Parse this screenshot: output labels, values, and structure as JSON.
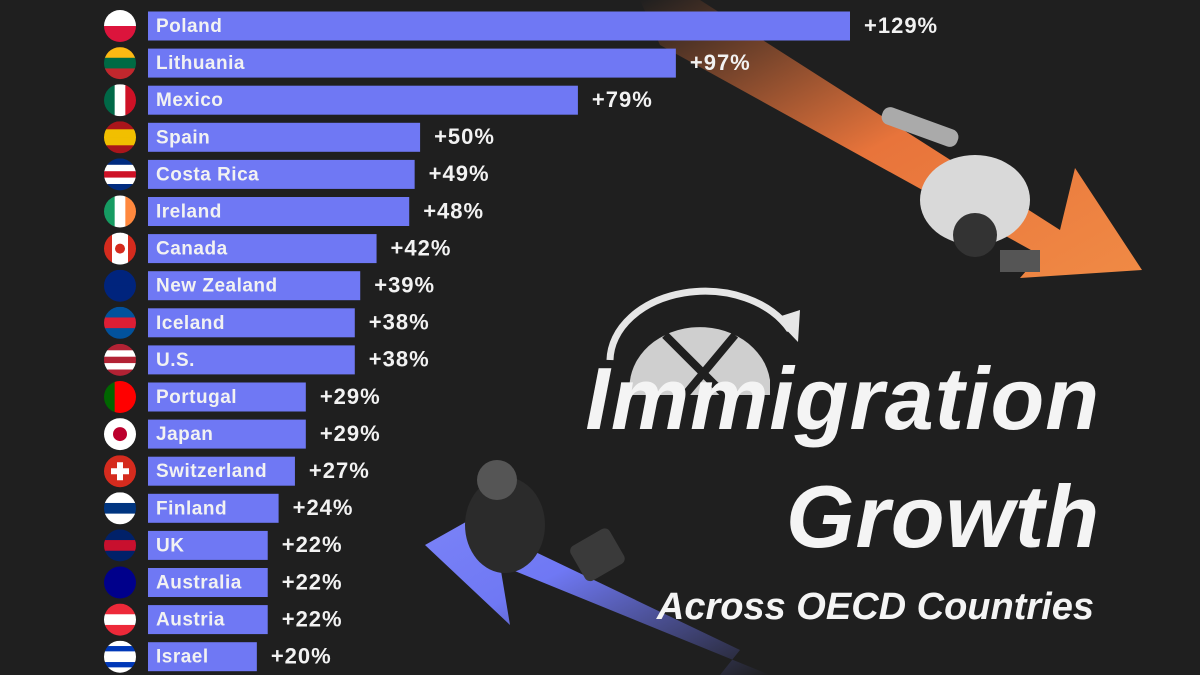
{
  "chart_data": {
    "type": "bar",
    "orientation": "horizontal",
    "title": "Immigration Growth",
    "subtitle": "Across OECD Countries",
    "categories": [
      "Poland",
      "Lithuania",
      "Mexico",
      "Spain",
      "Costa Rica",
      "Ireland",
      "Canada",
      "New Zealand",
      "Iceland",
      "U.S.",
      "Portugal",
      "Japan",
      "Switzerland",
      "Finland",
      "UK",
      "Australia",
      "Austria",
      "Israel"
    ],
    "values": [
      129,
      97,
      79,
      50,
      49,
      48,
      42,
      39,
      38,
      38,
      29,
      29,
      27,
      24,
      22,
      22,
      22,
      20
    ],
    "value_labels": [
      "+129%",
      "+97%",
      "+79%",
      "+50%",
      "+49%",
      "+48%",
      "+42%",
      "+39%",
      "+38%",
      "+38%",
      "+29%",
      "+29%",
      "+27%",
      "+24%",
      "+22%",
      "+22%",
      "+22%",
      "+20%"
    ],
    "color": "#6f78f4"
  }
}
